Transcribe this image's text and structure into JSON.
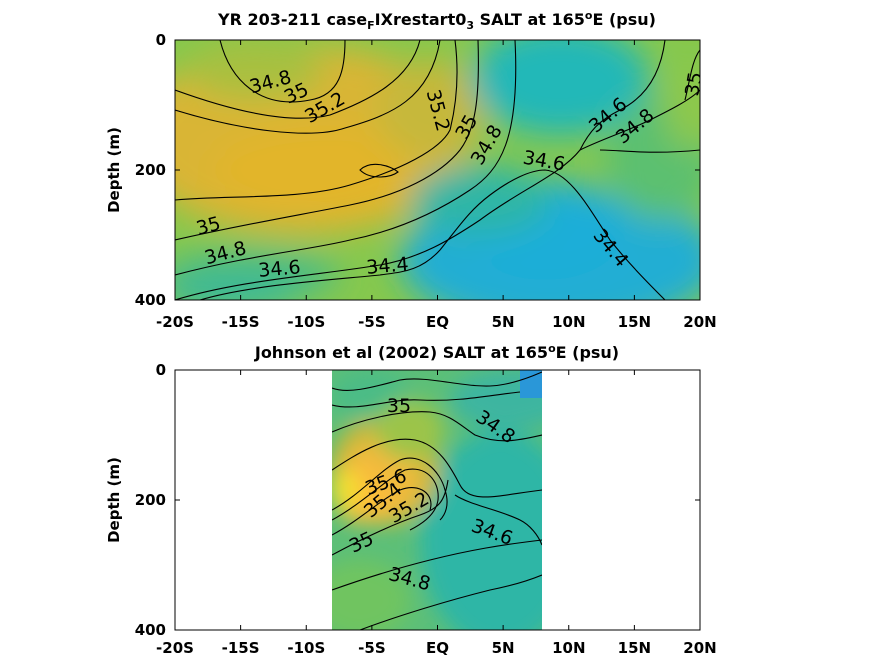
{
  "chart_data": [
    {
      "type": "heatmap",
      "title_parts": {
        "pre": "YR 203-211 case",
        "sub1": "F",
        "mid": "IXrestart0",
        "sub2": "3",
        "post1": " SALT at 165",
        "sup": "o",
        "post2": "E (psu)"
      },
      "ylabel": "Depth (m)",
      "xticks": [
        -20,
        -15,
        -10,
        -5,
        0,
        5,
        10,
        15,
        20
      ],
      "xtick_labels": [
        "-20S",
        "-15S",
        "-10S",
        "-5S",
        "EQ",
        "5N",
        "10N",
        "15N",
        "20N"
      ],
      "yticks": [
        0,
        200,
        400
      ],
      "ytick_labels": [
        "0",
        "200",
        "400"
      ],
      "xlim": [
        -20,
        20
      ],
      "ylim": [
        400,
        0
      ],
      "data_extent_x": [
        -20,
        20
      ],
      "contour_levels": [
        34.4,
        34.6,
        34.8,
        35.0,
        35.2
      ],
      "contour_labels": [
        {
          "text": "34.8",
          "x": -13.5,
          "y": 70,
          "rot": -15
        },
        {
          "text": "35",
          "x": -11,
          "y": 90,
          "rot": -25
        },
        {
          "text": "35.2",
          "x": -8,
          "y": 100,
          "rot": -30
        },
        {
          "text": "35.2",
          "x": -0.2,
          "y": 110,
          "rot": 75
        },
        {
          "text": "35",
          "x": 2.8,
          "y": 140,
          "rot": -60
        },
        {
          "text": "34.8",
          "x": 4,
          "y": 160,
          "rot": -60
        },
        {
          "text": "34.6",
          "x": 8,
          "y": 185,
          "rot": 10
        },
        {
          "text": "34.6",
          "x": 13.5,
          "y": 110,
          "rot": -40
        },
        {
          "text": "34.8",
          "x": 15.5,
          "y": 130,
          "rot": -40
        },
        {
          "text": "35",
          "x": 19.5,
          "y": 75,
          "rot": -80
        },
        {
          "text": "35",
          "x": -17.5,
          "y": 280,
          "rot": -15
        },
        {
          "text": "34.8",
          "x": -15.5,
          "y": 330,
          "rot": -15
        },
        {
          "text": "34.6",
          "x": -11.5,
          "y": 350,
          "rot": -5
        },
        {
          "text": "34.4",
          "x": -3.8,
          "y": 345,
          "rot": -5
        },
        {
          "text": "34.4",
          "x": 12.7,
          "y": 315,
          "rot": 50
        }
      ]
    },
    {
      "type": "heatmap",
      "title_parts": {
        "pre": "Johnson et al (2002) SALT at 165",
        "sup": "o",
        "post": "E (psu)"
      },
      "ylabel": "Depth (m)",
      "xticks": [
        -20,
        -15,
        -10,
        -5,
        0,
        5,
        10,
        15,
        20
      ],
      "xtick_labels": [
        "-20S",
        "-15S",
        "-10S",
        "-5S",
        "EQ",
        "5N",
        "10N",
        "15N",
        "20N"
      ],
      "yticks": [
        0,
        200,
        400
      ],
      "ytick_labels": [
        "0",
        "200",
        "400"
      ],
      "xlim": [
        -20,
        20
      ],
      "ylim": [
        400,
        0
      ],
      "data_extent_x": [
        -8,
        8
      ],
      "contour_levels": [
        34.6,
        34.8,
        35.0,
        35.2,
        35.4,
        35.6
      ],
      "contour_labels": [
        {
          "text": "35",
          "x": -2.7,
          "y": 55,
          "rot": 0
        },
        {
          "text": "34.8",
          "x": 4.2,
          "y": 85,
          "rot": 35
        },
        {
          "text": "35.6",
          "x": -3.8,
          "y": 170,
          "rot": -20
        },
        {
          "text": "35.4",
          "x": -3.8,
          "y": 195,
          "rot": -40
        },
        {
          "text": "35.2",
          "x": -1.8,
          "y": 205,
          "rot": -30
        },
        {
          "text": "35",
          "x": -5.3,
          "y": 265,
          "rot": -25
        },
        {
          "text": "34.6",
          "x": 4,
          "y": 245,
          "rot": 20
        },
        {
          "text": "34.8",
          "x": -2.2,
          "y": 320,
          "rot": 15
        }
      ]
    }
  ]
}
